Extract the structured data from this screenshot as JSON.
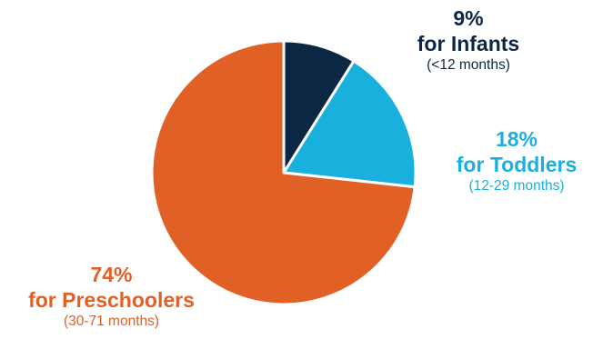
{
  "chart_data": {
    "type": "pie",
    "slices": [
      {
        "percent_label": "9%",
        "name": "for Infants",
        "range": "(<12 months)",
        "value": 9,
        "color": "#0c2744"
      },
      {
        "percent_label": "18%",
        "name": "for Toddlers",
        "range": "(12-29 months)",
        "value": 18,
        "color": "#1ab0dd"
      },
      {
        "percent_label": "74%",
        "name": "for Preschoolers",
        "range": "(30-71 months)",
        "value": 74,
        "color": "#e06025"
      }
    ]
  }
}
